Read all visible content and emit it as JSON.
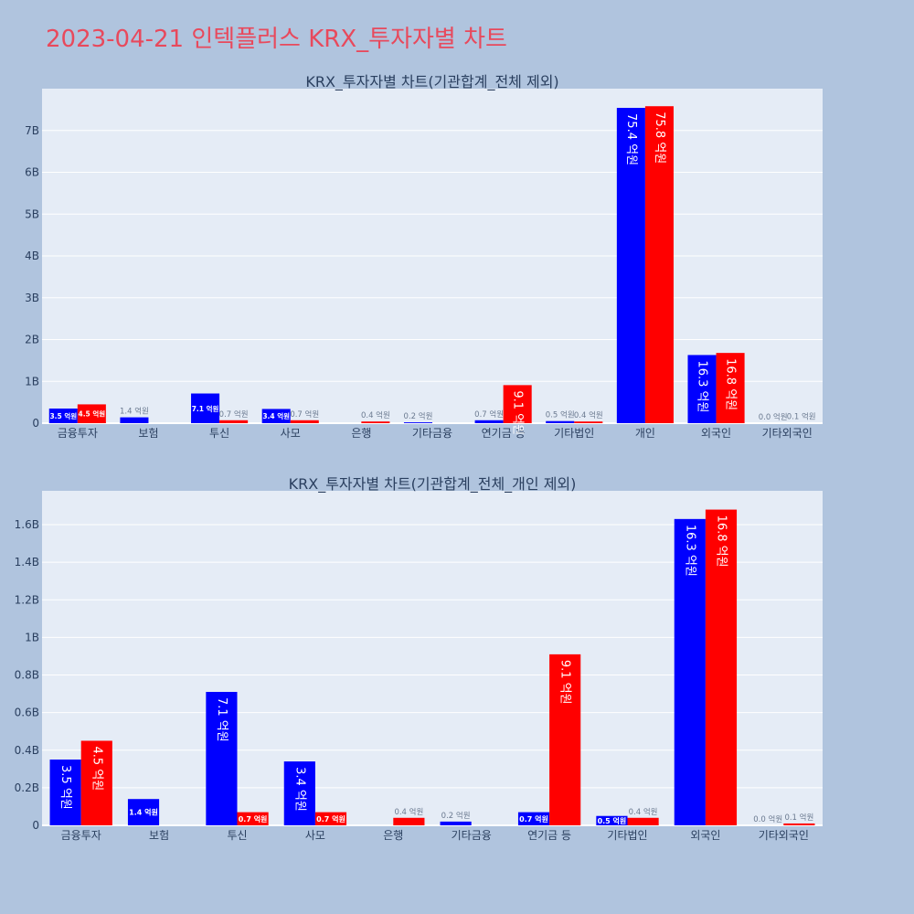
{
  "page": {
    "title": "2023-04-21 인텍플러스 KRX_투자자별 차트",
    "background": "#b0c4de",
    "title_color": "#e8495c"
  },
  "colors": {
    "plot_bg": "#e5ecf6",
    "grid": "#ffffff",
    "series_blue": "#0000ff",
    "series_red": "#ff0000"
  },
  "chart_data": [
    {
      "type": "bar",
      "title": "KRX_투자자별 차트(기관합계_전체 제외)",
      "categories": [
        "금융투자",
        "보험",
        "투신",
        "사모",
        "은행",
        "기타금융",
        "연기금 등",
        "기타법인",
        "개인",
        "외국인",
        "기타외국인"
      ],
      "series": [
        {
          "color": "#0000ff",
          "values": [
            0.35,
            0.14,
            0.71,
            0.34,
            0.0,
            0.02,
            0.07,
            0.05,
            7.54,
            1.63,
            0.0
          ],
          "labels": [
            "3.5 억원",
            "1.4 억원",
            "7.1 억원",
            "3.4 억원",
            "",
            "0.2 억원",
            "0.7 억원",
            "0.5 억원",
            "75.4 억원",
            "16.3 억원",
            "0.0 억원"
          ]
        },
        {
          "color": "#ff0000",
          "values": [
            0.45,
            0.0,
            0.07,
            0.07,
            0.04,
            0.0,
            0.91,
            0.04,
            7.58,
            1.68,
            0.01
          ],
          "labels": [
            "4.5 억원",
            "",
            "0.7 억원",
            "0.7 억원",
            "0.4 억원",
            "",
            "9.1 억원",
            "0.4 억원",
            "75.8 억원",
            "16.8 억원",
            "0.1 억원"
          ]
        }
      ],
      "unit": "B",
      "ylim": [
        0,
        8.0
      ],
      "yticks": [
        0,
        1,
        2,
        3,
        4,
        5,
        6,
        7
      ],
      "ytick_labels": [
        "0",
        "1B",
        "2B",
        "3B",
        "4B",
        "5B",
        "6B",
        "7B"
      ],
      "grid": true
    },
    {
      "type": "bar",
      "title": "KRX_투자자별 차트(기관합계_전체_개인 제외)",
      "categories": [
        "금융투자",
        "보험",
        "투신",
        "사모",
        "은행",
        "기타금융",
        "연기금 등",
        "기타법인",
        "외국인",
        "기타외국인"
      ],
      "series": [
        {
          "color": "#0000ff",
          "values": [
            0.35,
            0.14,
            0.71,
            0.34,
            0.0,
            0.02,
            0.07,
            0.05,
            1.63,
            0.0
          ],
          "labels": [
            "3.5 억원",
            "1.4 억원",
            "7.1 억원",
            "3.4 억원",
            "",
            "0.2 억원",
            "0.7 억원",
            "0.5 억원",
            "16.3 억원",
            "0.0 억원"
          ]
        },
        {
          "color": "#ff0000",
          "values": [
            0.45,
            0.0,
            0.07,
            0.07,
            0.04,
            0.0,
            0.91,
            0.04,
            1.68,
            0.01
          ],
          "labels": [
            "4.5 억원",
            "",
            "0.7 억원",
            "0.7 억원",
            "0.4 억원",
            "",
            "9.1 억원",
            "0.4 억원",
            "16.8 억원",
            "0.1 억원"
          ]
        }
      ],
      "unit": "B",
      "ylim": [
        0,
        1.78
      ],
      "yticks": [
        0,
        0.2,
        0.4,
        0.6,
        0.8,
        1.0,
        1.2,
        1.4,
        1.6
      ],
      "ytick_labels": [
        "0",
        "0.2B",
        "0.4B",
        "0.6B",
        "0.8B",
        "1B",
        "1.2B",
        "1.4B",
        "1.6B"
      ],
      "grid": true
    }
  ]
}
